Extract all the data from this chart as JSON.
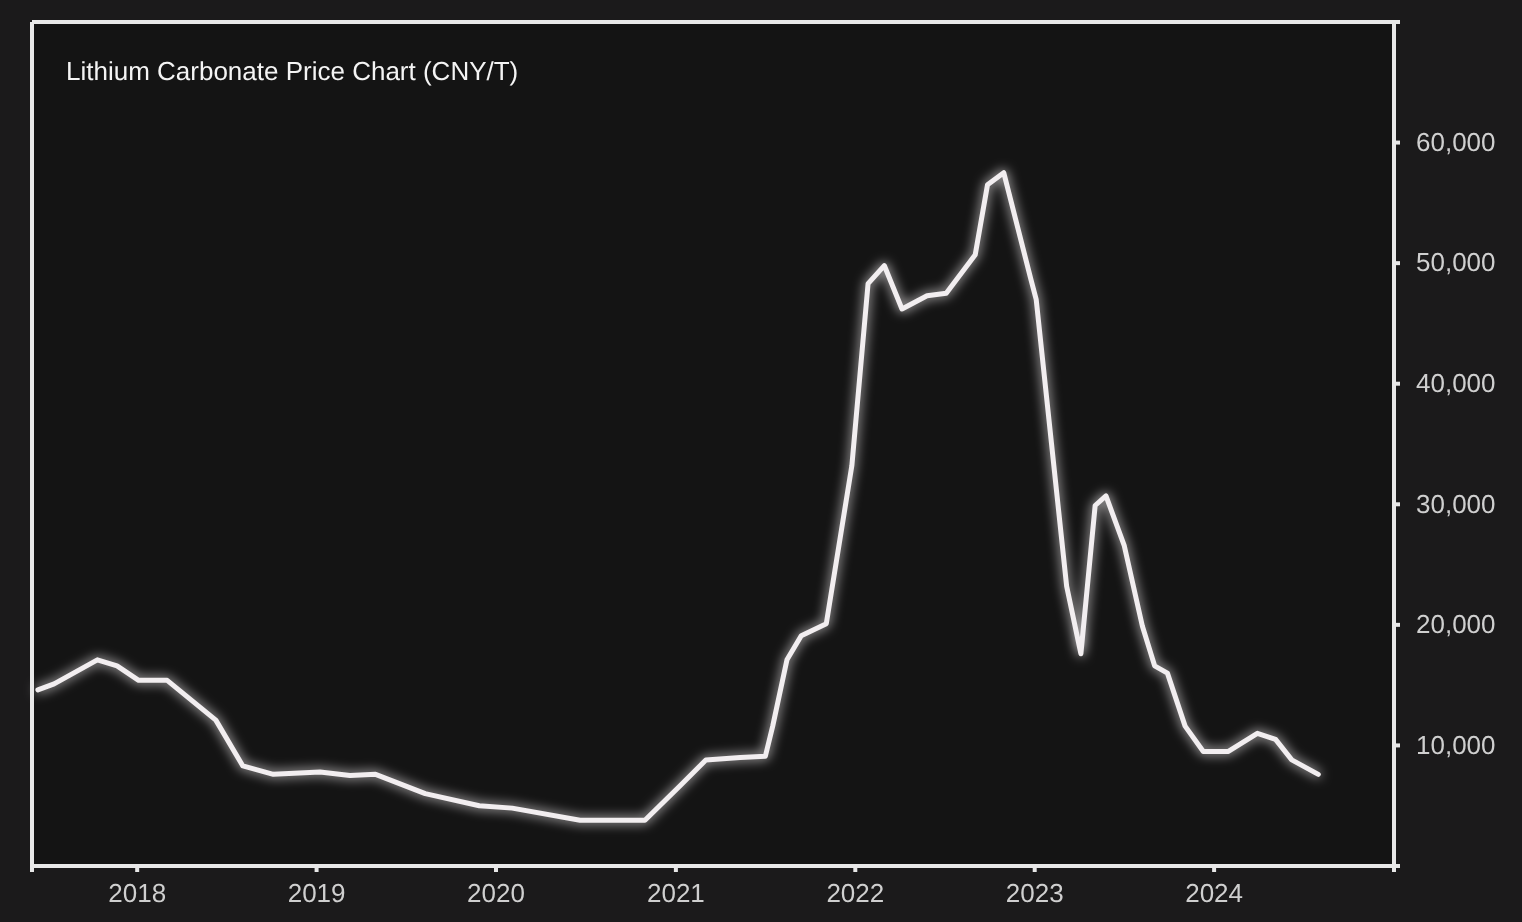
{
  "chart_data": {
    "type": "line",
    "title": "Lithium Carbonate Price Chart (CNY/T)",
    "x": [
      "2017-06-13",
      "2017-07-16",
      "2017-10-12",
      "2017-11-21",
      "2018-01-04",
      "2018-03-03",
      "2018-06-10",
      "2018-08-04",
      "2018-10-05",
      "2019-01-08",
      "2019-03-10",
      "2019-05-01",
      "2019-08-10",
      "2019-11-28",
      "2020-02-03",
      "2020-06-20",
      "2020-10-30",
      "2021-01-08",
      "2021-03-03",
      "2021-05-12",
      "2021-07-02",
      "2021-07-17",
      "2021-08-15",
      "2021-09-13",
      "2021-11-03",
      "2021-12-25",
      "2022-01-27",
      "2022-03-01",
      "2022-04-06",
      "2022-05-27",
      "2022-07-05",
      "2022-09-02",
      "2022-09-27",
      "2022-10-30",
      "2022-12-24",
      "2023-01-04",
      "2023-03-07",
      "2023-04-05",
      "2023-05-04",
      "2023-05-26",
      "2023-07-02",
      "2023-08-08",
      "2023-09-02",
      "2023-09-28",
      "2023-11-03",
      "2023-12-10",
      "2024-01-30",
      "2024-03-29",
      "2024-05-05",
      "2024-06-07",
      "2024-07-31"
    ],
    "series": [
      {
        "color": "#f2eef0",
        "values": [
          14600,
          15100,
          17100,
          16600,
          15400,
          15400,
          12100,
          8300,
          7600,
          7800,
          7500,
          7600,
          6000,
          5000,
          4800,
          3800,
          3800,
          6600,
          8800,
          9000,
          9100,
          11600,
          17100,
          19100,
          20100,
          33200,
          48300,
          49800,
          46200,
          47300,
          47500,
          50700,
          56500,
          57500,
          48700,
          47000,
          23200,
          17600,
          29900,
          30700,
          26600,
          19900,
          16600,
          16000,
          11600,
          9500,
          9500,
          11000,
          10500,
          8800,
          7600
        ]
      }
    ],
    "xlim": [
      "2017-06-01",
      "2025-01-01"
    ],
    "xticks": [
      {
        "value": "2018-01-01",
        "label": "2018"
      },
      {
        "value": "2019-01-01",
        "label": "2019"
      },
      {
        "value": "2020-01-01",
        "label": "2020"
      },
      {
        "value": "2021-01-01",
        "label": "2021"
      },
      {
        "value": "2022-01-01",
        "label": "2022"
      },
      {
        "value": "2023-01-01",
        "label": "2023"
      },
      {
        "value": "2024-01-01",
        "label": "2024"
      }
    ],
    "ylim": [
      0,
      70000
    ],
    "yticks": [
      {
        "value": 10000,
        "label": "10,000"
      },
      {
        "value": 20000,
        "label": "20,000"
      },
      {
        "value": 30000,
        "label": "30,000"
      },
      {
        "value": 40000,
        "label": "40,000"
      },
      {
        "value": 50000,
        "label": "50,000"
      },
      {
        "value": 60000,
        "label": "60,000"
      }
    ],
    "grid": false,
    "marker": "none",
    "line_style": "solid"
  }
}
